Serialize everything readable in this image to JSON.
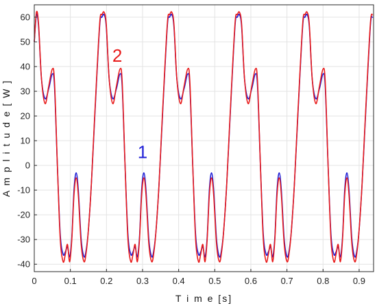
{
  "chart_data": {
    "type": "line",
    "title": "",
    "xlabel": "T i m e [s]",
    "ylabel": "A m p l i t u d e [ W ]",
    "xlim": [
      0,
      0.94
    ],
    "ylim": [
      -43,
      65
    ],
    "xticks": [
      0,
      0.1,
      0.2,
      0.3,
      0.4,
      0.5,
      0.6,
      0.7,
      0.8,
      0.9
    ],
    "xtick_labels": [
      "0",
      "0.1",
      "0.2",
      "0.3",
      "0.4",
      "0.5",
      "0.6",
      "0.7",
      "0.8",
      "0.9"
    ],
    "yticks": [
      -40,
      -30,
      -20,
      -10,
      0,
      10,
      20,
      30,
      40,
      50,
      60
    ],
    "ytick_labels": [
      "-40",
      "-30",
      "-20",
      "-10",
      "0",
      "10",
      "20",
      "30",
      "40",
      "50",
      "60"
    ],
    "grid": true,
    "legend": "none",
    "period": 0.1875,
    "series": [
      {
        "color": "#1f1fd6",
        "x": [
          0,
          0.006,
          0.012,
          0.02,
          0.03,
          0.04,
          0.05,
          0.056,
          0.064,
          0.072,
          0.08,
          0.086,
          0.092,
          0.098,
          0.104,
          0.11,
          0.116,
          0.122,
          0.13,
          0.138,
          0.144,
          0.15,
          0.158,
          0.166,
          0.174,
          0.182,
          0.1875
        ],
        "y": [
          50,
          61,
          56,
          35,
          27,
          31,
          37,
          32,
          0,
          -28,
          -36,
          -35,
          -33,
          -37,
          -29,
          -10,
          -3,
          -10,
          -30,
          -37,
          -34,
          -26,
          -8,
          15,
          38,
          58,
          60
        ]
      },
      {
        "color": "#e81a1a",
        "x": [
          0,
          0.006,
          0.012,
          0.02,
          0.03,
          0.04,
          0.05,
          0.056,
          0.064,
          0.072,
          0.08,
          0.086,
          0.092,
          0.098,
          0.104,
          0.11,
          0.116,
          0.122,
          0.13,
          0.138,
          0.144,
          0.15,
          0.158,
          0.166,
          0.174,
          0.182,
          0.1875
        ],
        "y": [
          50,
          62,
          57,
          35,
          25,
          32,
          39,
          34,
          0,
          -30,
          -39,
          -36,
          -32,
          -39,
          -30,
          -12,
          -5,
          -12,
          -32,
          -39,
          -35,
          -26,
          -8,
          16,
          39,
          59,
          61
        ]
      }
    ],
    "annotations": [
      {
        "text": "2",
        "x": 0.23,
        "y": 42,
        "color": "#e81a1a"
      },
      {
        "text": "1",
        "x": 0.3,
        "y": 3,
        "color": "#1f1fd6"
      }
    ]
  }
}
